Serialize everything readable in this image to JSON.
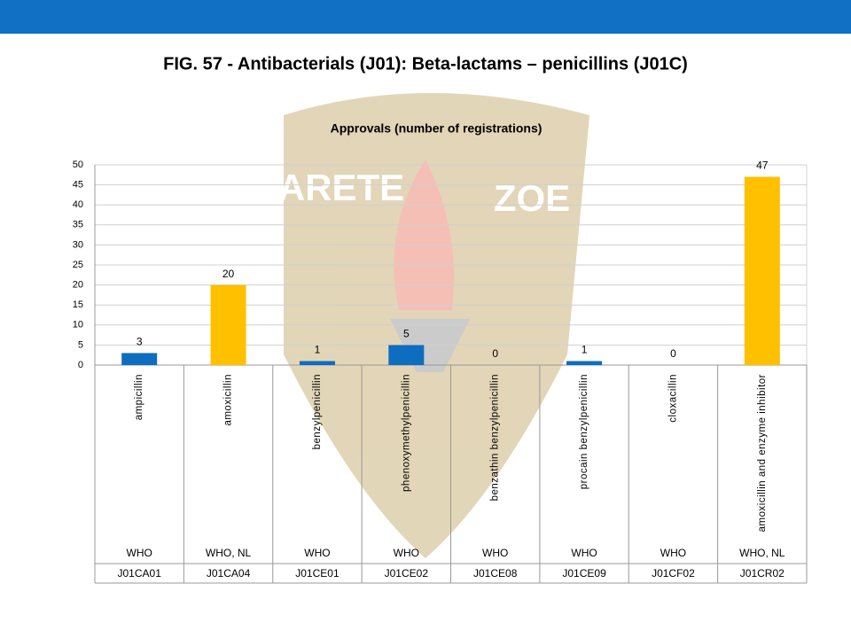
{
  "header": {
    "title": "FIG. 57 - Antibacterials (J01): Beta-lactams – penicillins (J01C)"
  },
  "watermark": {
    "left": "ARETE",
    "right": "ZOE"
  },
  "chart_data": {
    "type": "bar",
    "title": "Approvals (number of registrations)",
    "categories": [
      "ampicillin",
      "amoxicillin",
      "benzylpenicillin",
      "phenoxymethylpenicillin",
      "benzathin benzylpenicillin",
      "procain benzylpenicillin",
      "cloxacillin",
      "amoxicillin and enzyme inhibitor"
    ],
    "sources": [
      "WHO",
      "WHO, NL",
      "WHO",
      "WHO",
      "WHO",
      "WHO",
      "WHO",
      "WHO, NL"
    ],
    "codes": [
      "J01CA01",
      "J01CA04",
      "J01CE01",
      "J01CE02",
      "J01CE08",
      "J01CE09",
      "J01CF02",
      "J01CR02"
    ],
    "values": [
      3,
      20,
      1,
      5,
      0,
      1,
      0,
      47
    ],
    "colors": [
      "#0f6dbf",
      "#ffc000",
      "#0f6dbf",
      "#0f6dbf",
      "#0f6dbf",
      "#0f6dbf",
      "#0f6dbf",
      "#ffc000"
    ],
    "ylim": [
      0,
      50
    ],
    "yticks": [
      0,
      5,
      10,
      15,
      20,
      25,
      30,
      35,
      40,
      45,
      50
    ],
    "grid": true
  }
}
